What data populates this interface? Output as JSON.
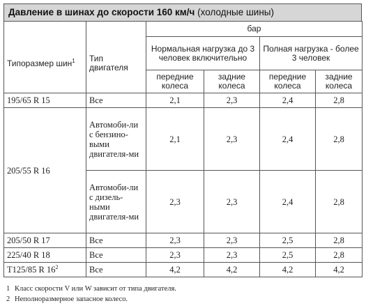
{
  "title": {
    "bold": "Давление в шинах до скорости 160 км/ч",
    "normal": " (холодные шины)"
  },
  "header": {
    "tire_size": "Типоразмер шин",
    "tire_size_note": "1",
    "engine_type": "Тип двигателя",
    "unit": "бар",
    "normal_load": "Нормальная нагрузка до 3 человек включительно",
    "full_load": "Полная нагрузка - более 3 человек",
    "front": "передние колеса",
    "rear": "задние колеса"
  },
  "rows": [
    {
      "size": "195/65 R 15",
      "engine": "Все",
      "values": [
        "2,1",
        "2,3",
        "2,4",
        "2,8"
      ]
    },
    {
      "size": "205/55 R 16",
      "engine": "Автомоби-ли с бензино-выми двигателя-ми",
      "values": [
        "2,1",
        "2,3",
        "2,4",
        "2,8"
      ]
    },
    {
      "engine": "Автомоби-ли с дизель-ными двигателя-ми",
      "values": [
        "2,3",
        "2,3",
        "2,4",
        "2,8"
      ]
    },
    {
      "size": "205/50 R 17",
      "engine": "Все",
      "values": [
        "2,3",
        "2,3",
        "2,5",
        "2,8"
      ]
    },
    {
      "size": "225/40 R 18",
      "engine": "Все",
      "values": [
        "2,3",
        "2,3",
        "2,5",
        "2,8"
      ]
    },
    {
      "size": "T125/85 R 16",
      "size_note": "2",
      "engine": "Все",
      "values": [
        "4,2",
        "4,2",
        "4,2",
        "4,2"
      ]
    }
  ],
  "notes": [
    {
      "num": "1",
      "text": "Класс скорости V или W зависит от типа двигателя."
    },
    {
      "num": "2",
      "text": "Неполноразмерное запасное колесо."
    }
  ]
}
